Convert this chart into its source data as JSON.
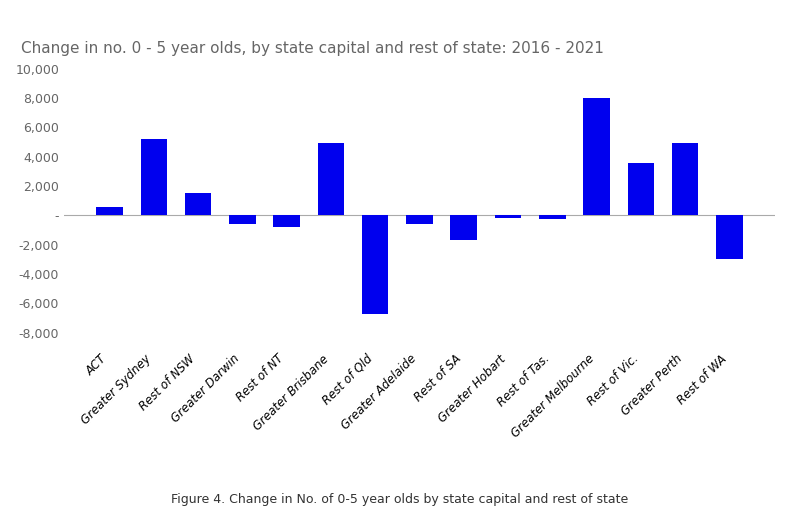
{
  "categories": [
    "ACT",
    "Greater Sydney",
    "Rest of NSW",
    "Greater Darwin",
    "Rest of NT",
    "Greater Brisbane",
    "Rest of Qld",
    "Greater Adelaide",
    "Rest of SA",
    "Greater Hobart",
    "Rest of Tas.",
    "Greater Melbourne",
    "Rest of Vic.",
    "Greater Perth",
    "Rest of WA"
  ],
  "values": [
    600,
    5200,
    1550,
    -600,
    -800,
    4900,
    -6700,
    -600,
    -1700,
    -200,
    -250,
    8000,
    3600,
    4900,
    -3000
  ],
  "bar_color": "#0000EE",
  "title": "Change in no. 0 - 5 year olds, by state capital and rest of state: 2016 - 2021",
  "title_fontsize": 11,
  "ylim": [
    -9000,
    10500
  ],
  "yticks": [
    -8000,
    -6000,
    -4000,
    -2000,
    0,
    2000,
    4000,
    6000,
    8000,
    10000
  ],
  "figure_caption": "Figure 4. Change in No. of 0-5 year olds by state capital and rest of state",
  "background_color": "#ffffff"
}
